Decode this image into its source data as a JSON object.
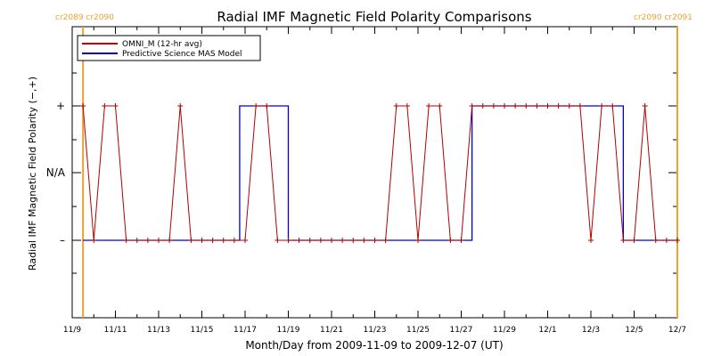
{
  "chart_data": {
    "type": "line",
    "title": "Radial IMF Magnetic Field Polarity Comparisons",
    "xlabel": "Month/Day from 2009-11-09 to 2009-12-07 (UT)",
    "ylabel": "Radial IMF Magnetic Field Polarity (−,+)",
    "xlim": [
      "2009-11-09",
      "2009-12-07"
    ],
    "x_ticks": [
      "11/9",
      "11/11",
      "11/13",
      "11/15",
      "11/17",
      "11/19",
      "11/21",
      "11/23",
      "11/25",
      "11/27",
      "11/29",
      "12/1",
      "12/3",
      "12/5",
      "12/7"
    ],
    "y_categories": [
      "–",
      "N/A",
      "+"
    ],
    "legend": {
      "placement": "top-left"
    },
    "carrington_markers": [
      {
        "x": "2009-11-09T12:00",
        "label": "cr2089 cr2090",
        "color": "#f0a030"
      },
      {
        "x": "2009-12-07T00:00",
        "label": "cr2090 cr2091",
        "color": "#f0a030"
      }
    ],
    "series": [
      {
        "name": "OMNI_M (12-hr avg)",
        "color": "#b00000",
        "x": [
          "2009-11-09T12:00",
          "2009-11-10T00:00",
          "2009-11-10T12:00",
          "2009-11-11T00:00",
          "2009-11-11T12:00",
          "2009-11-12T00:00",
          "2009-11-12T12:00",
          "2009-11-13T00:00",
          "2009-11-13T12:00",
          "2009-11-14T00:00",
          "2009-11-14T12:00",
          "2009-11-15T00:00",
          "2009-11-15T12:00",
          "2009-11-16T00:00",
          "2009-11-16T12:00",
          "2009-11-17T00:00",
          "2009-11-17T12:00",
          "2009-11-18T00:00",
          "2009-11-18T12:00",
          "2009-11-19T00:00",
          "2009-11-19T12:00",
          "2009-11-20T00:00",
          "2009-11-20T12:00",
          "2009-11-21T00:00",
          "2009-11-21T12:00",
          "2009-11-22T00:00",
          "2009-11-22T12:00",
          "2009-11-23T00:00",
          "2009-11-23T12:00",
          "2009-11-24T00:00",
          "2009-11-24T12:00",
          "2009-11-25T00:00",
          "2009-11-25T12:00",
          "2009-11-26T00:00",
          "2009-11-26T12:00",
          "2009-11-27T00:00",
          "2009-11-27T12:00",
          "2009-11-28T00:00",
          "2009-11-28T12:00",
          "2009-11-29T00:00",
          "2009-11-29T12:00",
          "2009-11-30T00:00",
          "2009-11-30T12:00",
          "2009-12-01T00:00",
          "2009-12-01T12:00",
          "2009-12-02T00:00",
          "2009-12-02T12:00",
          "2009-12-03T00:00",
          "2009-12-03T12:00",
          "2009-12-04T00:00",
          "2009-12-04T12:00",
          "2009-12-05T00:00",
          "2009-12-05T12:00",
          "2009-12-06T00:00",
          "2009-12-06T12:00",
          "2009-12-07T00:00"
        ],
        "y": [
          "+",
          "–",
          "+",
          "+",
          "–",
          "–",
          "–",
          "–",
          "–",
          "+",
          "–",
          "–",
          "–",
          "–",
          "–",
          "–",
          "+",
          "+",
          "–",
          "–",
          "–",
          "–",
          "–",
          "–",
          "–",
          "–",
          "–",
          "–",
          "–",
          "+",
          "+",
          "–",
          "+",
          "+",
          "–",
          "–",
          "+",
          "+",
          "+",
          "+",
          "+",
          "+",
          "+",
          "+",
          "+",
          "+",
          "+",
          "–",
          "+",
          "+",
          "–",
          "–",
          "+",
          "–",
          "–",
          "–"
        ]
      },
      {
        "name": "Predictive Science MAS Model",
        "color": "#0000c8",
        "segments": [
          {
            "from": "2009-11-09T12:00",
            "to": "2009-11-16T18:00",
            "value": "–"
          },
          {
            "from": "2009-11-16T18:00",
            "to": "2009-11-19T00:00",
            "value": "+"
          },
          {
            "from": "2009-11-19T00:00",
            "to": "2009-11-27T12:00",
            "value": "–"
          },
          {
            "from": "2009-11-27T12:00",
            "to": "2009-12-04T12:00",
            "value": "+"
          },
          {
            "from": "2009-12-04T12:00",
            "to": "2009-12-07T00:00",
            "value": "–"
          }
        ]
      }
    ]
  }
}
